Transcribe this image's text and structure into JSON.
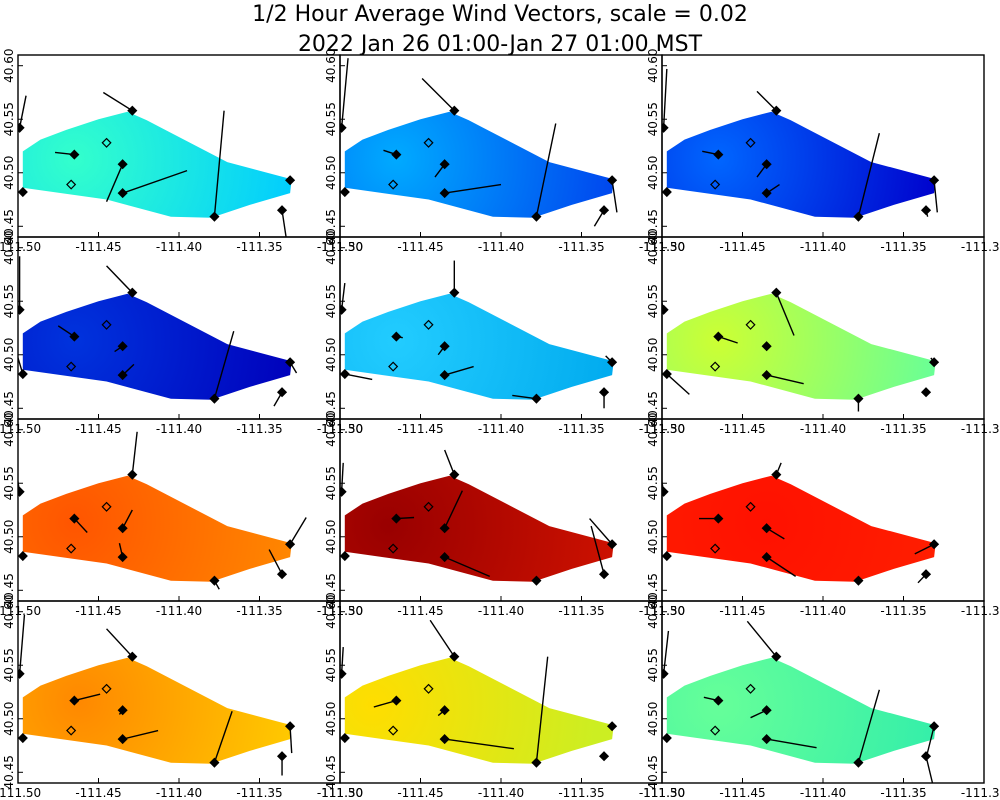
{
  "title": "1/2 Hour Average Wind Vectors, scale =  0.02",
  "subtitle": "2022 Jan 26 01:00-Jan 27 01:00 MST",
  "chart_data": {
    "type": "heatmap",
    "grid_rows": 4,
    "grid_cols": 3,
    "xlim": [
      -111.5,
      -111.3
    ],
    "ylim": [
      40.44,
      40.61
    ],
    "x_ticks": [
      -111.5,
      -111.45,
      -111.4,
      -111.35,
      -111.3
    ],
    "x_tick_labels": [
      "-111.50",
      "-111.45",
      "-111.40",
      "-111.35",
      "-111.30"
    ],
    "y_ticks": [
      40.45,
      40.5,
      40.55,
      40.6
    ],
    "y_tick_labels": [
      "40.45",
      "40.50",
      "40.55",
      "40.60"
    ],
    "polygon": [
      [
        -111.497,
        40.52
      ],
      [
        -111.486,
        40.531
      ],
      [
        -111.47,
        40.54
      ],
      [
        -111.45,
        40.55
      ],
      [
        -111.432,
        40.557
      ],
      [
        -111.42,
        40.549
      ],
      [
        -111.37,
        40.51
      ],
      [
        -111.33,
        40.494
      ],
      [
        -111.331,
        40.481
      ],
      [
        -111.356,
        40.47
      ],
      [
        -111.38,
        40.458
      ],
      [
        -111.405,
        40.459
      ],
      [
        -111.445,
        40.475
      ],
      [
        -111.497,
        40.486
      ]
    ],
    "stations": [
      {
        "id": "S1",
        "lon": -111.499,
        "lat": 40.542,
        "open": false
      },
      {
        "id": "S2",
        "lon": -111.497,
        "lat": 40.482,
        "open": false
      },
      {
        "id": "S3",
        "lon": -111.465,
        "lat": 40.517,
        "open": false
      },
      {
        "id": "S4",
        "lon": -111.467,
        "lat": 40.489,
        "open": true
      },
      {
        "id": "S5",
        "lon": -111.445,
        "lat": 40.528,
        "open": true
      },
      {
        "id": "S6",
        "lon": -111.435,
        "lat": 40.508,
        "open": false
      },
      {
        "id": "S7",
        "lon": -111.435,
        "lat": 40.481,
        "open": false
      },
      {
        "id": "S8",
        "lon": -111.429,
        "lat": 40.558,
        "open": false
      },
      {
        "id": "S9",
        "lon": -111.378,
        "lat": 40.459,
        "open": false
      },
      {
        "id": "S10",
        "lon": -111.331,
        "lat": 40.493,
        "open": false
      },
      {
        "id": "S11",
        "lon": -111.336,
        "lat": 40.465,
        "open": false
      }
    ],
    "panels": [
      {
        "gradient": [
          "#33ffcc",
          "#00ccff"
        ],
        "hotspot": [
          -111.465,
          40.513
        ],
        "vectors": [
          [
            0.004,
            0.03
          ],
          null,
          [
            -0.012,
            0.002
          ],
          null,
          null,
          [
            -0.01,
            -0.035
          ],
          [
            0.04,
            0.021
          ],
          [
            -0.018,
            0.017
          ],
          [
            0.006,
            0.099
          ],
          null,
          [
            0.003,
            -0.03
          ]
        ]
      },
      {
        "gradient": [
          "#00aaff",
          "#0044ee"
        ],
        "hotspot": [
          -111.465,
          40.513
        ],
        "vectors": [
          [
            0.004,
            0.065
          ],
          null,
          [
            -0.008,
            0.004
          ],
          null,
          null,
          [
            -0.006,
            -0.012
          ],
          [
            0.035,
            0.008
          ],
          [
            -0.02,
            0.03
          ],
          [
            0.012,
            0.087
          ],
          [
            0.003,
            -0.03
          ],
          [
            -0.006,
            -0.015
          ]
        ]
      },
      {
        "gradient": [
          "#0066ff",
          "#0000cc"
        ],
        "hotspot": [
          -111.465,
          40.513
        ],
        "vectors": [
          [
            0.002,
            0.055
          ],
          null,
          [
            -0.01,
            0.003
          ],
          null,
          null,
          [
            -0.006,
            -0.012
          ],
          [
            0.008,
            0.008
          ],
          [
            -0.012,
            0.018
          ],
          [
            0.013,
            0.078
          ],
          [
            0.002,
            -0.03
          ],
          [
            0.001,
            -0.006
          ]
        ]
      },
      {
        "gradient": [
          "#0033dd",
          "#0000bb"
        ],
        "hotspot": [
          -111.465,
          40.513
        ],
        "vectors": [
          [
            0.0,
            0.05
          ],
          [
            -0.005,
            0.025
          ],
          [
            -0.01,
            0.01
          ],
          null,
          null,
          [
            -0.005,
            -0.005
          ],
          [
            0.007,
            0.01
          ],
          [
            -0.016,
            0.025
          ],
          [
            0.012,
            0.063
          ],
          [
            0.004,
            -0.01
          ],
          [
            -0.005,
            -0.013
          ]
        ]
      },
      {
        "gradient": [
          "#22ccff",
          "#00aaee"
        ],
        "hotspot": [
          -111.465,
          40.513
        ],
        "vectors": [
          [
            0.002,
            0.025
          ],
          [
            0.017,
            -0.005
          ],
          [
            0.004,
            -0.001
          ],
          null,
          null,
          [
            -0.004,
            -0.008
          ],
          [
            0.018,
            0.008
          ],
          [
            0.0,
            0.03
          ],
          [
            -0.015,
            0.003
          ],
          [
            -0.004,
            0.006
          ],
          [
            0.0,
            -0.015
          ]
        ]
      },
      {
        "gradient": [
          "#ccff33",
          "#66ff99"
        ],
        "hotspot": [
          -111.465,
          40.513
        ],
        "vectors": [
          [
            -0.004,
            0.024
          ],
          [
            0.014,
            -0.019
          ],
          [
            0.012,
            -0.006
          ],
          null,
          null,
          [
            -0.002,
            0.001
          ],
          [
            0.023,
            -0.008
          ],
          [
            0.011,
            -0.04
          ],
          [
            0.0,
            -0.012
          ],
          [
            -0.002,
            0.004
          ],
          null
        ]
      },
      {
        "gradient": [
          "#ff5500",
          "#ff8800"
        ],
        "hotspot": [
          -111.465,
          40.513
        ],
        "vectors": [
          [
            -0.005,
            0.045
          ],
          null,
          [
            0.008,
            -0.013
          ],
          null,
          null,
          [
            0.006,
            0.017
          ],
          [
            -0.002,
            0.013
          ],
          [
            0.003,
            0.04
          ],
          [
            0.003,
            -0.008
          ],
          [
            0.01,
            0.025
          ],
          [
            -0.008,
            0.023
          ]
        ]
      },
      {
        "gradient": [
          "#990000",
          "#cc1100"
        ],
        "hotspot": [
          -111.47,
          40.51
        ],
        "vectors": [
          [
            0.001,
            0.027
          ],
          null,
          [
            0.011,
            0.001
          ],
          null,
          null,
          [
            0.011,
            0.035
          ],
          [
            0.028,
            -0.018
          ],
          [
            -0.006,
            0.023
          ],
          null,
          [
            -0.014,
            0.024
          ],
          [
            -0.008,
            0.045
          ]
        ]
      },
      {
        "gradient": [
          "#ff1100",
          "#ff2200"
        ],
        "hotspot": [
          -111.435,
          40.513
        ],
        "vectors": [
          [
            -0.007,
            0.06
          ],
          null,
          [
            -0.012,
            0.0
          ],
          null,
          null,
          [
            0.011,
            -0.01
          ],
          [
            0.018,
            -0.018
          ],
          [
            0.003,
            0.011
          ],
          null,
          [
            -0.012,
            -0.009
          ],
          [
            -0.005,
            -0.008
          ]
        ]
      },
      {
        "gradient": [
          "#ff8800",
          "#ffcc00"
        ],
        "hotspot": [
          -111.462,
          40.516
        ],
        "vectors": [
          [
            0.003,
            0.055
          ],
          null,
          [
            0.016,
            0.006
          ],
          null,
          null,
          [
            -0.002,
            -0.004
          ],
          [
            0.022,
            0.008
          ],
          [
            -0.016,
            0.026
          ],
          [
            0.011,
            0.048
          ],
          [
            0.001,
            -0.025
          ],
          [
            0.0,
            -0.018
          ]
        ]
      },
      {
        "gradient": [
          "#ffdd00",
          "#ccee22"
        ],
        "hotspot": [
          -111.48,
          40.513
        ],
        "vectors": [
          [
            0.001,
            0.025
          ],
          null,
          [
            -0.014,
            -0.006
          ],
          null,
          null,
          [
            -0.004,
            -0.005
          ],
          [
            0.043,
            -0.009
          ],
          [
            -0.015,
            0.034
          ],
          [
            0.007,
            0.099
          ],
          null,
          null
        ]
      },
      {
        "gradient": [
          "#66ff99",
          "#33eeaa"
        ],
        "hotspot": [
          -111.465,
          40.513
        ],
        "vectors": [
          [
            0.003,
            0.04
          ],
          null,
          [
            -0.009,
            0.003
          ],
          null,
          null,
          [
            -0.01,
            -0.007
          ],
          [
            0.031,
            -0.008
          ],
          [
            -0.018,
            0.033
          ],
          [
            0.013,
            0.068
          ],
          [
            -0.005,
            -0.03
          ],
          [
            0.004,
            -0.025
          ]
        ]
      }
    ]
  }
}
